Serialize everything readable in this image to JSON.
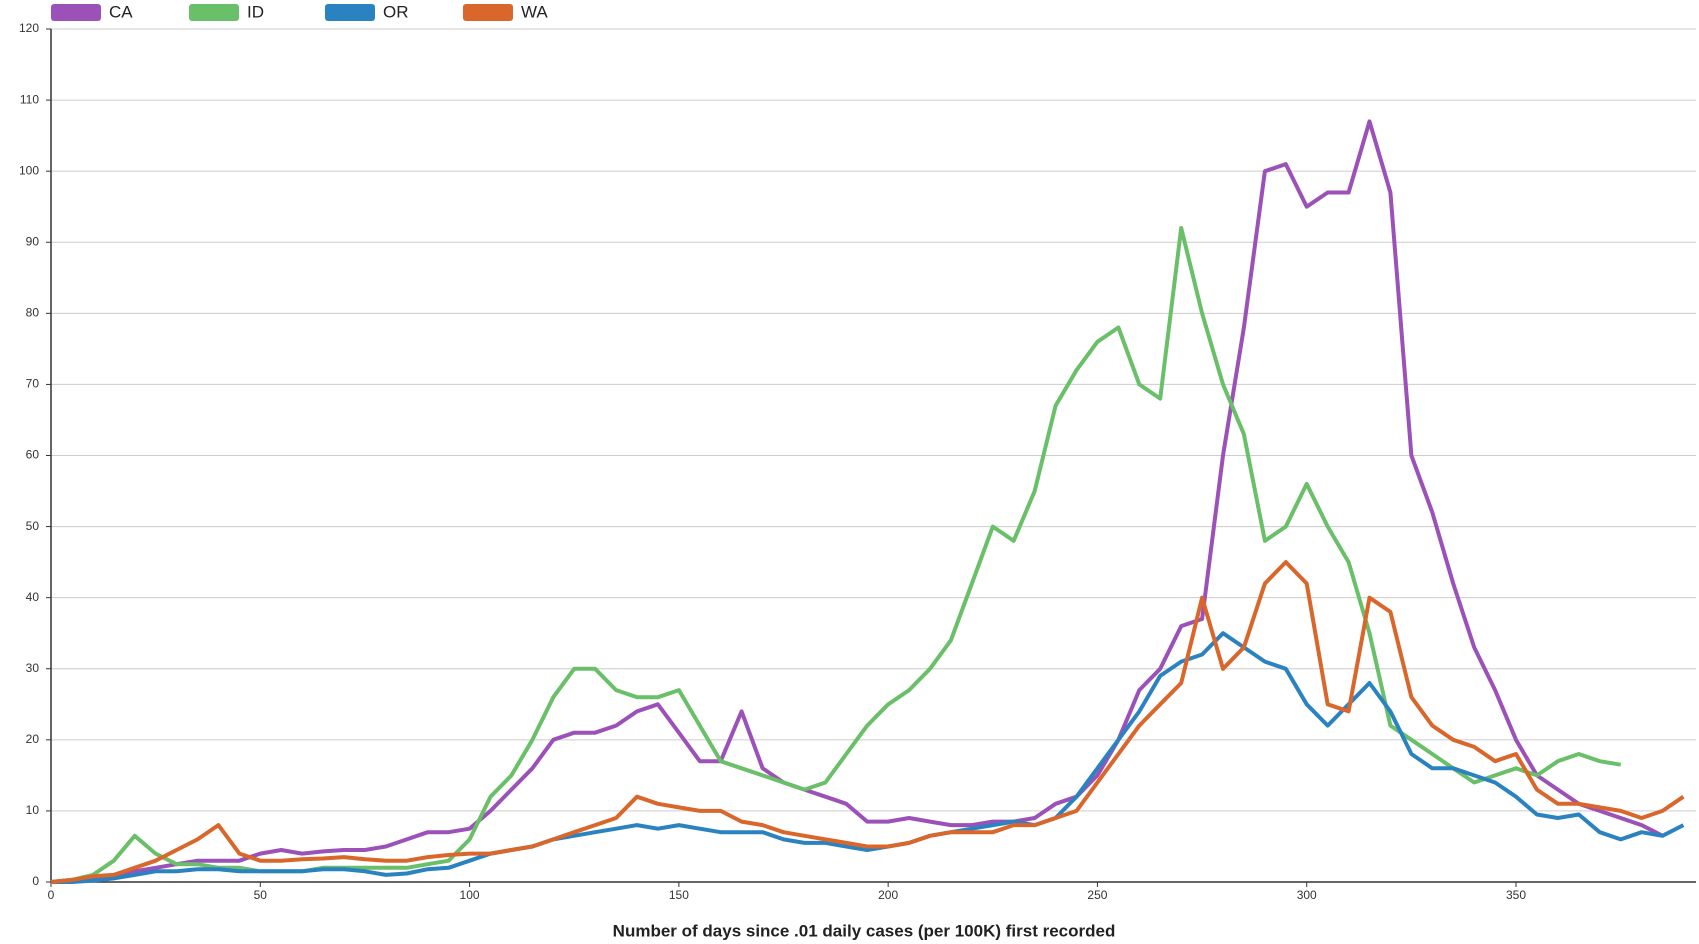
{
  "chart_data": {
    "type": "line",
    "x_label": "Number of days since .01 daily cases (per 100K) first recorded",
    "x": [
      0,
      5,
      10,
      15,
      20,
      25,
      30,
      35,
      40,
      45,
      50,
      55,
      60,
      65,
      70,
      75,
      80,
      85,
      90,
      95,
      100,
      105,
      110,
      115,
      120,
      125,
      130,
      135,
      140,
      145,
      150,
      155,
      160,
      165,
      170,
      175,
      180,
      185,
      190,
      195,
      200,
      205,
      210,
      215,
      220,
      225,
      230,
      235,
      240,
      245,
      250,
      255,
      260,
      265,
      270,
      275,
      280,
      285,
      290,
      295,
      300,
      305,
      310,
      315,
      320,
      325,
      330,
      335,
      340,
      345,
      350,
      355,
      360,
      365,
      370,
      375,
      380,
      385,
      390
    ],
    "series": [
      {
        "name": "CA",
        "color": "#9b51b8",
        "values": [
          0,
          0.3,
          0.5,
          1,
          1.5,
          2,
          2.5,
          3,
          3,
          3,
          4,
          4.5,
          4,
          4.3,
          4.5,
          4.5,
          5,
          6,
          7,
          7,
          7.5,
          10,
          13,
          16,
          20,
          21,
          21,
          22,
          24,
          25,
          21,
          17,
          17,
          24,
          16,
          14,
          13,
          12,
          11,
          8.5,
          8.5,
          9,
          8.5,
          8,
          8,
          8.5,
          8.5,
          9,
          11,
          12,
          15,
          20,
          27,
          30,
          36,
          37,
          60,
          78,
          100,
          101,
          95,
          97,
          97,
          107,
          97,
          60,
          52,
          42,
          33,
          27,
          20,
          15,
          13,
          11,
          10,
          9,
          8,
          6.5,
          null
        ]
      },
      {
        "name": "ID",
        "color": "#6abf69",
        "values": [
          0,
          0.3,
          1,
          3,
          6.5,
          4,
          2.5,
          2.5,
          2,
          2,
          1.5,
          1.5,
          1.5,
          2,
          2,
          2,
          2,
          2,
          2.5,
          3,
          6,
          12,
          15,
          20,
          26,
          30,
          30,
          27,
          26,
          26,
          27,
          22,
          17,
          16,
          15,
          14,
          13,
          14,
          18,
          22,
          25,
          27,
          30,
          34,
          42,
          50,
          48,
          55,
          67,
          72,
          76,
          78,
          70,
          68,
          92,
          80,
          70,
          63,
          48,
          50,
          56,
          50,
          45,
          35,
          22,
          20,
          18,
          16,
          14,
          15,
          16,
          15,
          17,
          18,
          17,
          16.5,
          null,
          null,
          null
        ]
      },
      {
        "name": "OR",
        "color": "#2a83c0",
        "values": [
          0,
          0,
          0.2,
          0.5,
          1,
          1.5,
          1.5,
          1.8,
          1.8,
          1.5,
          1.5,
          1.5,
          1.5,
          1.8,
          1.8,
          1.5,
          1,
          1.2,
          1.8,
          2,
          3,
          4,
          4.5,
          5,
          6,
          6.5,
          7,
          7.5,
          8,
          7.5,
          8,
          7.5,
          7,
          7,
          7,
          6,
          5.5,
          5.5,
          5,
          4.5,
          5,
          5.5,
          6.5,
          7,
          7.5,
          8,
          8.5,
          8,
          9,
          12,
          16,
          20,
          24,
          29,
          31,
          32,
          35,
          33,
          31,
          30,
          25,
          22,
          25,
          28,
          24,
          18,
          16,
          16,
          15,
          14,
          12,
          9.5,
          9,
          9.5,
          7,
          6,
          7,
          6.5,
          8
        ]
      },
      {
        "name": "WA",
        "color": "#d9662a",
        "values": [
          0,
          0.3,
          0.8,
          1,
          2,
          3,
          4.5,
          6,
          8,
          4,
          3,
          3,
          3.2,
          3.3,
          3.5,
          3.2,
          3,
          3,
          3.5,
          3.8,
          4,
          4,
          4.5,
          5,
          6,
          7,
          8,
          9,
          12,
          11,
          10.5,
          10,
          10,
          8.5,
          8,
          7,
          6.5,
          6,
          5.5,
          5,
          5,
          5.5,
          6.5,
          7,
          7,
          7,
          8,
          8,
          9,
          10,
          14,
          18,
          22,
          25,
          28,
          40,
          30,
          33,
          42,
          45,
          42,
          25,
          24,
          40,
          38,
          26,
          22,
          20,
          19,
          17,
          18,
          13,
          11,
          11,
          10.5,
          10,
          9,
          10,
          12
        ]
      }
    ],
    "xlim": [
      0,
      393
    ],
    "xticks": [
      0,
      50,
      100,
      150,
      200,
      250,
      300,
      350
    ],
    "ylim": [
      0,
      120
    ],
    "yticks": [
      0,
      10,
      20,
      30,
      40,
      50,
      60,
      70,
      80,
      90,
      100,
      110,
      120
    ],
    "grid": true,
    "legend": "top-left"
  }
}
